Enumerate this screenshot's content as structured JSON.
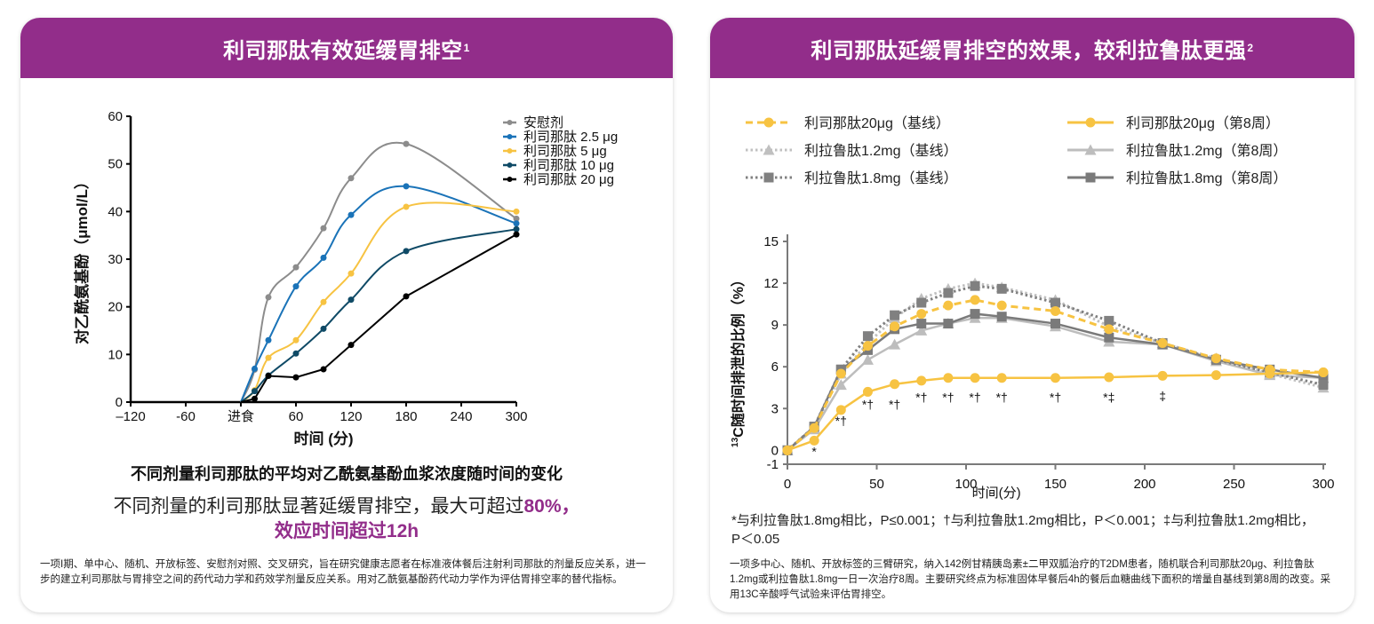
{
  "left_panel": {
    "title": "利司那肽有效延缓胃排空",
    "title_sup": "1",
    "chart_caption": "不同剂量利司那肽的平均对乙酰氨基酚血浆浓度随时间的变化",
    "headline_prefix": "不同剂量的利司那肽显著延缓胃排空，最大可超过",
    "headline_highlight_1": "80%，",
    "headline_highlight_2": "效应时间超过12h",
    "footnote": "一项I期、单中心、随机、开放标签、安慰剂对照、交叉研究，旨在研究健康志愿者在标准液体餐后注射利司那肽的剂量反应关系，进一步的建立利司那肽与胃排空之间的药代动力学和药效学剂量反应关系。用对乙酰氨基酚药代动力学作为评估胃排空率的替代指标。"
  },
  "right_panel": {
    "title": "利司那肽延缓胃排空的效果，较利拉鲁肽更强",
    "title_sup": "2",
    "significance_note": "*与利拉鲁肽1.8mg相比，P≤0.001；†与利拉鲁肽1.2mg相比，P＜0.001；‡与利拉鲁肽1.2mg相比，P＜0.05",
    "footnote": "一项多中心、随机、开放标签的三臂研究，纳入142例甘精胰岛素±二甲双胍治疗的T2DM患者，随机联合利司那肽20μg、利拉鲁肽1.2mg或利拉鲁肽1.8mg一日一次治疗8周。主要研究终点为标准固体早餐后4h的餐后血糖曲线下面积的增量自基线到第8周的改变。采用13C辛酸呼气试验来评估胃排空。"
  },
  "chart_data": [
    {
      "type": "line",
      "title": "不同剂量利司那肽的平均对乙酰氨基酚血浆浓度随时间的变化",
      "xlabel": "时间 (分)",
      "ylabel": "对乙酰氨基酚（μmol/L）",
      "xlim": [
        -120,
        300
      ],
      "ylim": [
        0,
        60
      ],
      "x_ticks": [
        -120,
        -60,
        0,
        60,
        120,
        180,
        240,
        300
      ],
      "x_tick_labels": [
        "–120",
        "-60",
        "进食",
        "60",
        "120",
        "180",
        "240",
        "300"
      ],
      "y_ticks": [
        0,
        10,
        20,
        30,
        40,
        50,
        60
      ],
      "grid": false,
      "legend_position": "top-right",
      "series": [
        {
          "name": "安慰剂",
          "color": "#8c8c8c",
          "x": [
            0,
            15,
            30,
            60,
            90,
            120,
            180,
            300
          ],
          "values": [
            0,
            6.8,
            22,
            28.3,
            36.5,
            47,
            54.2,
            38.5
          ]
        },
        {
          "name": "利司那肽  2.5 μg",
          "color": "#1a73b8",
          "x": [
            0,
            15,
            30,
            60,
            90,
            120,
            180,
            300
          ],
          "values": [
            0,
            7,
            13,
            24.3,
            30.3,
            39.3,
            45.3,
            37.5
          ]
        },
        {
          "name": "利司那肽   5 μg",
          "color": "#f7c342",
          "x": [
            0,
            15,
            30,
            60,
            90,
            120,
            180,
            300
          ],
          "values": [
            0,
            2.5,
            9.3,
            13,
            21,
            27,
            41,
            40
          ]
        },
        {
          "name": "利司那肽  10 μg",
          "color": "#0f4a66",
          "x": [
            0,
            15,
            30,
            60,
            90,
            120,
            180,
            300
          ],
          "values": [
            0,
            2.3,
            5.6,
            10.2,
            15.4,
            21.5,
            31.7,
            36.3
          ]
        },
        {
          "name": "利司那肽  20 μg",
          "color": "#000000",
          "x": [
            0,
            15,
            30,
            60,
            90,
            120,
            180,
            300
          ],
          "values": [
            0,
            0.7,
            5.5,
            5.2,
            6.9,
            12,
            22.2,
            35.2
          ]
        }
      ]
    },
    {
      "type": "line",
      "title": "",
      "xlabel": "时间(分)",
      "ylabel": "13C随时间排泄的比例（%）",
      "ylabel_sup": "13",
      "ylabel_main": "C随时间排泄的比例（%）",
      "xlim": [
        0,
        300
      ],
      "ylim": [
        -1,
        15
      ],
      "x_ticks": [
        0,
        50,
        100,
        150,
        200,
        250,
        300
      ],
      "y_ticks": [
        -1,
        0,
        3,
        6,
        9,
        12,
        15
      ],
      "grid": false,
      "legend_position": "top",
      "series": [
        {
          "name": "利司那肽20μg（基线）",
          "color": "#f7c342",
          "style": "dashed",
          "marker": "circle",
          "x": [
            0,
            15,
            30,
            45,
            60,
            75,
            90,
            105,
            120,
            150,
            180,
            210,
            240,
            270,
            300
          ],
          "values": [
            0,
            1.6,
            5.5,
            7.5,
            8.9,
            9.8,
            10.4,
            10.8,
            10.4,
            10.0,
            8.7,
            7.7,
            6.6,
            5.8,
            5.6
          ]
        },
        {
          "name": "利司那肽20μg（第8周）",
          "color": "#f7c342",
          "style": "solid",
          "marker": "circle",
          "x": [
            0,
            15,
            30,
            45,
            60,
            75,
            90,
            105,
            120,
            150,
            180,
            210,
            240,
            270,
            300
          ],
          "values": [
            0,
            0.7,
            2.9,
            4.2,
            4.75,
            5.0,
            5.2,
            5.2,
            5.2,
            5.2,
            5.25,
            5.35,
            5.4,
            5.5,
            5.6
          ]
        },
        {
          "name": "利拉鲁肽1.2mg（基线）",
          "color": "#c0c0c0",
          "style": "dotted",
          "marker": "triangle",
          "x": [
            0,
            15,
            30,
            45,
            60,
            75,
            90,
            105,
            120,
            150,
            180,
            210,
            240,
            270,
            300
          ],
          "values": [
            0,
            1.6,
            5.5,
            7.7,
            9.5,
            10.9,
            11.6,
            12.0,
            11.7,
            10.8,
            8.9,
            7.7,
            6.6,
            5.5,
            4.5
          ]
        },
        {
          "name": "利拉鲁肽1.2mg（第8周）",
          "color": "#bdbdbd",
          "style": "solid",
          "marker": "triangle",
          "x": [
            0,
            15,
            30,
            45,
            60,
            75,
            90,
            105,
            120,
            150,
            180,
            210,
            240,
            270,
            300
          ],
          "values": [
            0,
            1.5,
            4.7,
            6.5,
            7.6,
            8.6,
            9.1,
            9.5,
            9.5,
            8.9,
            7.8,
            7.6,
            6.4,
            5.4,
            5.2
          ]
        },
        {
          "name": "利拉鲁肽1.8mg（基线）",
          "color": "#808080",
          "style": "dotted",
          "marker": "square",
          "x": [
            0,
            15,
            30,
            45,
            60,
            75,
            90,
            105,
            120,
            150,
            180,
            210,
            240,
            270,
            300
          ],
          "values": [
            0,
            1.7,
            5.8,
            8.2,
            9.7,
            10.6,
            11.3,
            11.8,
            11.6,
            10.6,
            9.3,
            7.7,
            6.5,
            5.6,
            4.7
          ]
        },
        {
          "name": "利拉鲁肽1.8mg（第8周）",
          "color": "#7a7a7a",
          "style": "solid",
          "marker": "square",
          "x": [
            0,
            15,
            30,
            45,
            60,
            75,
            90,
            105,
            120,
            150,
            180,
            210,
            240,
            270,
            300
          ],
          "values": [
            0,
            1.7,
            5.8,
            7.2,
            8.7,
            9.1,
            9.1,
            9.8,
            9.6,
            9.1,
            8.1,
            7.6,
            6.5,
            5.8,
            5.2
          ]
        }
      ],
      "annotations": [
        {
          "x": 15,
          "y": -0.4,
          "text": "*"
        },
        {
          "x": 30,
          "y": 1.8,
          "text": "*†"
        },
        {
          "x": 45,
          "y": 3.0,
          "text": "*†"
        },
        {
          "x": 60,
          "y": 3.0,
          "text": "*†"
        },
        {
          "x": 75,
          "y": 3.5,
          "text": "*†"
        },
        {
          "x": 90,
          "y": 3.5,
          "text": "*†"
        },
        {
          "x": 105,
          "y": 3.5,
          "text": "*†"
        },
        {
          "x": 120,
          "y": 3.5,
          "text": "*†"
        },
        {
          "x": 150,
          "y": 3.5,
          "text": "*†"
        },
        {
          "x": 180,
          "y": 3.5,
          "text": "*‡"
        },
        {
          "x": 210,
          "y": 3.6,
          "text": "‡"
        }
      ]
    }
  ]
}
